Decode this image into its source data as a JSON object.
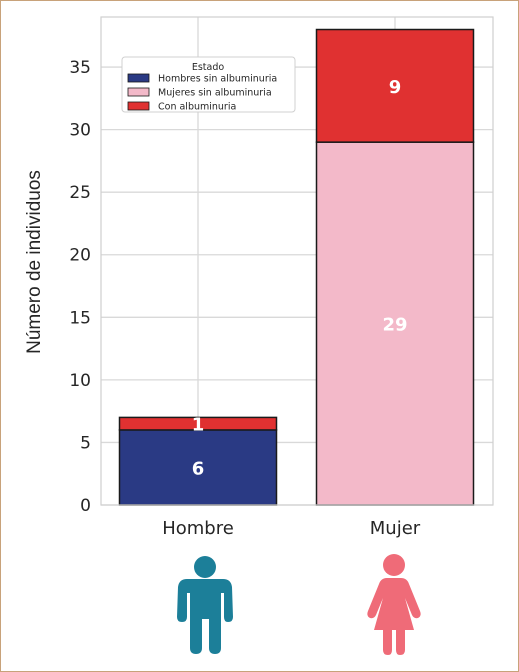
{
  "chart_data": {
    "type": "bar",
    "stacked": true,
    "categories": [
      "Hombre",
      "Mujer"
    ],
    "series": [
      {
        "name": "Hombres sin albuminuria",
        "values": [
          6,
          0
        ],
        "color": "#2a3a84"
      },
      {
        "name": "Mujeres sin albuminuria",
        "values": [
          0,
          29
        ],
        "color": "#f3b9c9"
      },
      {
        "name": "Con albuminuria",
        "values": [
          1,
          9
        ],
        "color": "#e03131"
      }
    ],
    "title": "",
    "xlabel": "",
    "ylabel": "Número de individuos",
    "ylim": [
      0,
      39
    ],
    "yticks": [
      0,
      5,
      10,
      15,
      20,
      25,
      30,
      35
    ],
    "grid": true,
    "legend": {
      "title": "Estado",
      "placement": "top-left"
    },
    "icons": [
      {
        "category": "Hombre",
        "icon": "male-person-icon",
        "color": "#1c7f99"
      },
      {
        "category": "Mujer",
        "icon": "female-person-icon",
        "color": "#ef6b78"
      }
    ]
  }
}
